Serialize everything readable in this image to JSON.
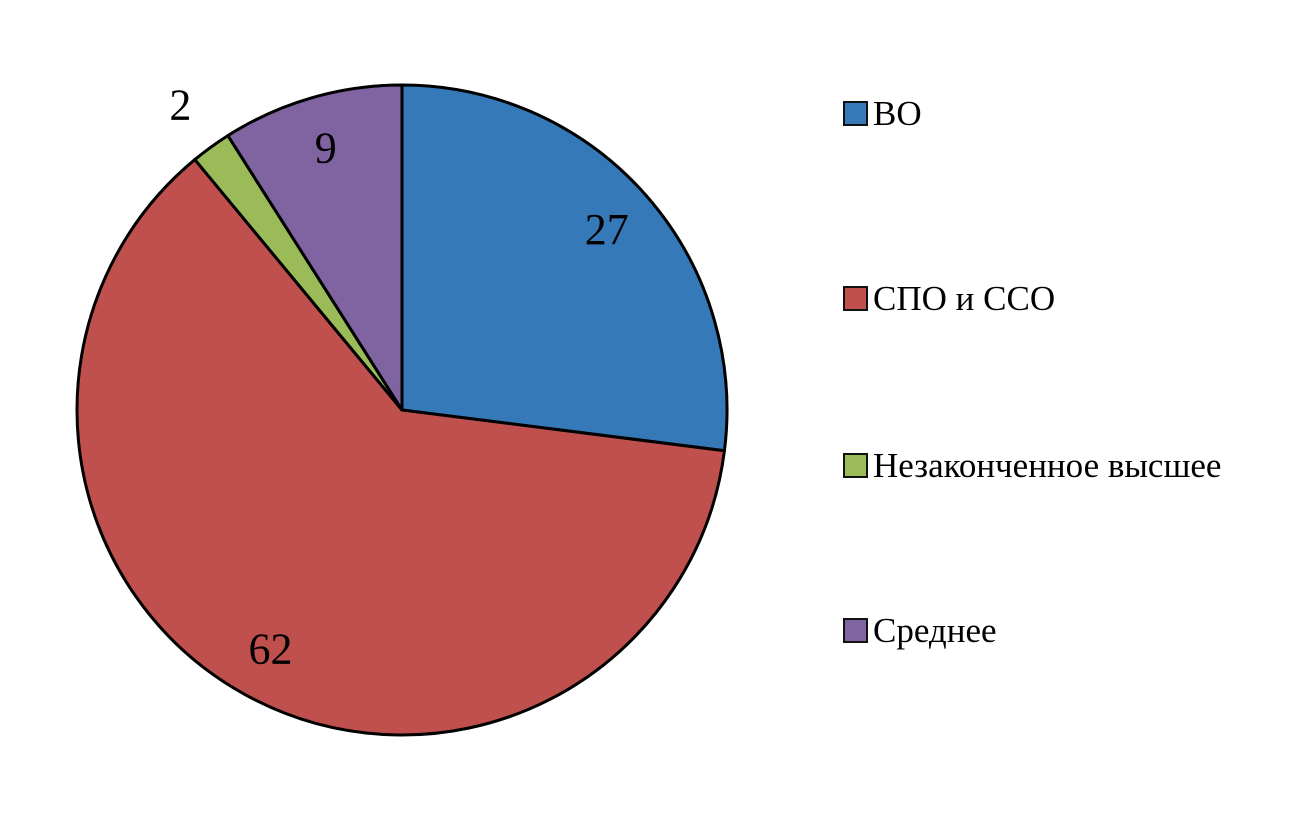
{
  "chart_data": {
    "type": "pie",
    "title": "",
    "slices": [
      {
        "label": "ВО",
        "value": 27,
        "color": "#3579B9"
      },
      {
        "label": "СПО и ССО",
        "value": 62,
        "color": "#C0504D"
      },
      {
        "label": "Незаконченное высшее",
        "value": 2,
        "color": "#9BBB59"
      },
      {
        "label": "Среднее",
        "value": 9,
        "color": "#8064A2"
      }
    ],
    "data_labels": [
      "27",
      "62",
      "2",
      "9"
    ],
    "start_angle_deg": 0,
    "direction": "clockwise",
    "legend_position": "right",
    "outline_color": "#000000",
    "background_color": "#ffffff"
  }
}
